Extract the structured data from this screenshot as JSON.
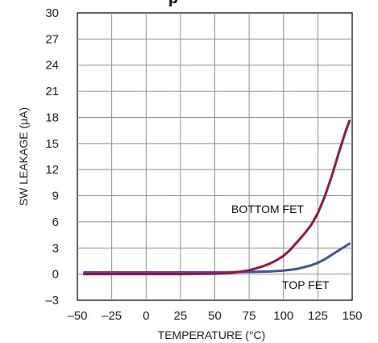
{
  "chart_data": {
    "type": "line",
    "title": "p",
    "xlabel": "TEMPERATURE (°C)",
    "ylabel": "SW LEAKAGE (μA)",
    "xlim": [
      -50,
      150
    ],
    "ylim": [
      -3,
      30
    ],
    "x_ticks": [
      -50,
      -25,
      0,
      25,
      50,
      75,
      100,
      125,
      150
    ],
    "y_ticks": [
      -3,
      0,
      3,
      6,
      9,
      12,
      15,
      18,
      21,
      24,
      27,
      30
    ],
    "x_tick_labels": [
      "–50",
      "–25",
      "0",
      "25",
      "50",
      "75",
      "100",
      "125",
      "150"
    ],
    "y_tick_labels": [
      "–3",
      "0",
      "3",
      "6",
      "9",
      "12",
      "15",
      "18",
      "21",
      "24",
      "27",
      "30"
    ],
    "grid": true,
    "series": [
      {
        "name": "BOTTOM FET",
        "color": "#9b1346",
        "x": [
          -45,
          -25,
          0,
          25,
          50,
          60,
          65,
          70,
          75,
          80,
          85,
          90,
          95,
          100,
          105,
          110,
          115,
          120,
          125,
          130,
          135,
          140,
          145,
          148
        ],
        "y": [
          0,
          0,
          0,
          0,
          0.05,
          0.1,
          0.2,
          0.3,
          0.45,
          0.65,
          0.9,
          1.2,
          1.6,
          2.1,
          2.8,
          3.7,
          4.6,
          5.6,
          7.0,
          8.9,
          11.2,
          13.8,
          16.3,
          17.6
        ]
      },
      {
        "name": "TOP FET",
        "color": "#3d55a0",
        "x": [
          -45,
          -25,
          0,
          25,
          50,
          75,
          90,
          100,
          105,
          110,
          115,
          120,
          125,
          130,
          135,
          140,
          145,
          148
        ],
        "y": [
          0.2,
          0.2,
          0.2,
          0.2,
          0.2,
          0.25,
          0.3,
          0.4,
          0.5,
          0.6,
          0.8,
          1.0,
          1.3,
          1.7,
          2.2,
          2.7,
          3.2,
          3.5
        ]
      }
    ]
  }
}
